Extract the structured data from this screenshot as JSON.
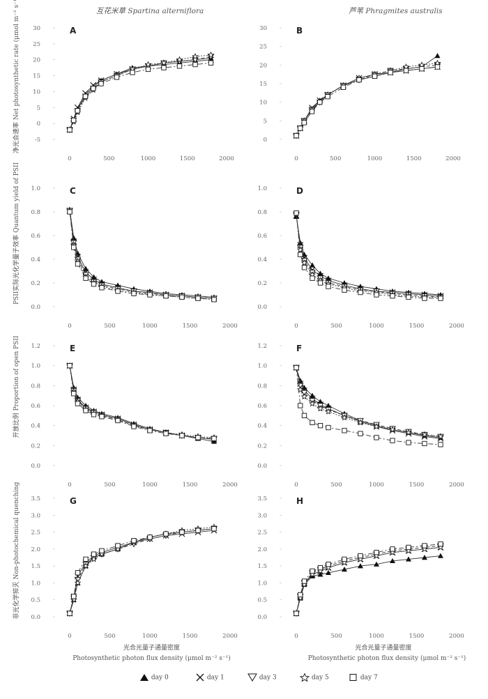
{
  "headers": {
    "left": "互花米草 Spartina alterniflora",
    "right": "芦苇 Phragmites australis"
  },
  "ylabels": {
    "row1": "净光合速率 Net photosynthetic rate (μmol m⁻² s⁻¹)",
    "row2": "PSII实际光化学量子效率 Quantum yield of PSII",
    "row3": "开放比例 Proportion of open PSII",
    "row4": "非光化学猝灭 Non-photochemical quenching"
  },
  "xlabels": {
    "left_cn": "光合光量子通量密度",
    "left_en": "Photosynthetic photon flux density (μmol m⁻² s⁻¹)",
    "right_cn": "光合光量子通量密度",
    "right_en": "Photosynthetic photon flux density (μmol m⁻² s⁻¹)"
  },
  "legend": [
    {
      "name": "day 0",
      "marker": "triangle-filled"
    },
    {
      "name": "day 1",
      "marker": "cross"
    },
    {
      "name": "day 3",
      "marker": "triangle-down-open"
    },
    {
      "name": "day 5",
      "marker": "star-open"
    },
    {
      "name": "day 7",
      "marker": "square-open"
    }
  ],
  "chart_data": [
    {
      "panel": "A",
      "type": "line",
      "x": [
        0,
        50,
        100,
        200,
        300,
        400,
        600,
        800,
        1000,
        1200,
        1400,
        1600,
        1800
      ],
      "xlim": [
        0,
        2000
      ],
      "xticks": [
        0,
        500,
        1000,
        1500,
        2000
      ],
      "ylim": [
        -5,
        30
      ],
      "yticks": [
        -5,
        0,
        5,
        10,
        15,
        20,
        25,
        30
      ],
      "series": [
        {
          "name": "day 0",
          "values": [
            -2,
            1,
            4.5,
            9,
            11.5,
            13.5,
            15.5,
            17.5,
            18,
            19,
            19.5,
            20,
            20.5
          ]
        },
        {
          "name": "day 1",
          "values": [
            -2,
            1.5,
            5,
            9.5,
            12,
            13.5,
            15.5,
            17,
            18,
            18.5,
            19,
            19.5,
            20
          ]
        },
        {
          "name": "day 3",
          "values": [
            -2,
            1,
            4,
            8.5,
            11,
            13,
            15,
            17,
            18,
            19,
            19.5,
            20,
            21
          ]
        },
        {
          "name": "day 5",
          "values": [
            -2,
            0.5,
            3.5,
            8,
            10.5,
            13,
            15,
            17,
            18.5,
            19,
            20,
            21,
            21.5
          ]
        },
        {
          "name": "day 7",
          "values": [
            -2,
            1,
            4,
            8.5,
            11,
            12.5,
            14.5,
            16,
            17,
            17.5,
            18,
            18.5,
            19
          ]
        }
      ]
    },
    {
      "panel": "B",
      "type": "line",
      "x": [
        0,
        50,
        100,
        200,
        300,
        400,
        600,
        800,
        1000,
        1200,
        1400,
        1600,
        1800
      ],
      "xlim": [
        0,
        2000
      ],
      "xticks": [
        0,
        500,
        1000,
        1500,
        2000
      ],
      "ylim": [
        0,
        30
      ],
      "yticks": [
        0,
        5,
        10,
        15,
        20,
        25,
        30
      ],
      "series": [
        {
          "name": "day 0",
          "values": [
            1,
            3,
            5,
            8,
            10.5,
            12,
            14.5,
            16,
            17,
            18,
            19,
            19.5,
            22.5
          ]
        },
        {
          "name": "day 1",
          "values": [
            1,
            3,
            5,
            8.5,
            10.5,
            12,
            14.5,
            16.5,
            17.5,
            18,
            18.5,
            19,
            19.5
          ]
        },
        {
          "name": "day 3",
          "values": [
            1,
            3,
            5,
            8,
            10,
            12,
            14.5,
            16,
            17.5,
            18.5,
            19,
            19.5,
            20
          ]
        },
        {
          "name": "day 5",
          "values": [
            1,
            3,
            5,
            8,
            10,
            12,
            14.5,
            16.5,
            17.5,
            18.5,
            19.5,
            20,
            20.5
          ]
        },
        {
          "name": "day 7",
          "values": [
            1,
            3,
            4.5,
            7.5,
            10,
            11.5,
            14,
            16,
            17,
            18,
            18.5,
            19,
            19.5
          ]
        }
      ]
    },
    {
      "panel": "C",
      "type": "line",
      "x": [
        0,
        50,
        100,
        200,
        300,
        400,
        600,
        800,
        1000,
        1200,
        1400,
        1600,
        1800
      ],
      "xlim": [
        0,
        2000
      ],
      "xticks": [
        0,
        500,
        1000,
        1500,
        2000
      ],
      "ylim": [
        0,
        1.0
      ],
      "yticks": [
        0.0,
        0.2,
        0.4,
        0.6,
        0.8,
        1.0
      ],
      "series": [
        {
          "name": "day 0",
          "values": [
            0.82,
            0.58,
            0.45,
            0.32,
            0.25,
            0.21,
            0.18,
            0.15,
            0.13,
            0.11,
            0.1,
            0.09,
            0.08
          ]
        },
        {
          "name": "day 1",
          "values": [
            0.81,
            0.55,
            0.42,
            0.29,
            0.23,
            0.19,
            0.16,
            0.13,
            0.12,
            0.1,
            0.09,
            0.08,
            0.07
          ]
        },
        {
          "name": "day 3",
          "values": [
            0.81,
            0.54,
            0.4,
            0.27,
            0.21,
            0.18,
            0.15,
            0.13,
            0.11,
            0.1,
            0.09,
            0.08,
            0.07
          ]
        },
        {
          "name": "day 5",
          "values": [
            0.81,
            0.52,
            0.38,
            0.25,
            0.2,
            0.17,
            0.14,
            0.12,
            0.1,
            0.09,
            0.08,
            0.07,
            0.06
          ]
        },
        {
          "name": "day 7",
          "values": [
            0.8,
            0.5,
            0.36,
            0.24,
            0.19,
            0.16,
            0.13,
            0.11,
            0.1,
            0.09,
            0.08,
            0.07,
            0.06
          ]
        }
      ]
    },
    {
      "panel": "D",
      "type": "line",
      "x": [
        0,
        50,
        100,
        200,
        300,
        400,
        600,
        800,
        1000,
        1200,
        1400,
        1600,
        1800
      ],
      "xlim": [
        0,
        2000
      ],
      "xticks": [
        0,
        500,
        1000,
        1500,
        2000
      ],
      "ylim": [
        0,
        1.0
      ],
      "yticks": [
        0.0,
        0.2,
        0.4,
        0.6,
        0.8,
        1.0
      ],
      "series": [
        {
          "name": "day 0",
          "values": [
            0.76,
            0.54,
            0.44,
            0.35,
            0.28,
            0.24,
            0.2,
            0.17,
            0.15,
            0.13,
            0.12,
            0.11,
            0.1
          ]
        },
        {
          "name": "day 1",
          "values": [
            0.77,
            0.52,
            0.41,
            0.31,
            0.26,
            0.22,
            0.18,
            0.15,
            0.13,
            0.12,
            0.11,
            0.1,
            0.09
          ]
        },
        {
          "name": "day 3",
          "values": [
            0.78,
            0.5,
            0.39,
            0.29,
            0.24,
            0.2,
            0.17,
            0.14,
            0.13,
            0.11,
            0.1,
            0.09,
            0.08
          ]
        },
        {
          "name": "day 5",
          "values": [
            0.78,
            0.48,
            0.37,
            0.27,
            0.22,
            0.19,
            0.16,
            0.13,
            0.12,
            0.1,
            0.09,
            0.08,
            0.08
          ]
        },
        {
          "name": "day 7",
          "values": [
            0.79,
            0.44,
            0.33,
            0.24,
            0.2,
            0.17,
            0.14,
            0.12,
            0.1,
            0.09,
            0.08,
            0.07,
            0.07
          ]
        }
      ]
    },
    {
      "panel": "E",
      "type": "line",
      "x": [
        0,
        50,
        100,
        200,
        300,
        400,
        600,
        800,
        1000,
        1200,
        1400,
        1600,
        1800
      ],
      "xlim": [
        0,
        2000
      ],
      "xticks": [
        0,
        500,
        1000,
        1500,
        2000
      ],
      "ylim": [
        0,
        1.2
      ],
      "yticks": [
        0.0,
        0.2,
        0.4,
        0.6,
        0.8,
        1.0,
        1.2
      ],
      "series": [
        {
          "name": "day 0",
          "values": [
            1.0,
            0.78,
            0.68,
            0.6,
            0.55,
            0.52,
            0.48,
            0.42,
            0.37,
            0.33,
            0.3,
            0.27,
            0.24
          ]
        },
        {
          "name": "day 1",
          "values": [
            1.0,
            0.76,
            0.66,
            0.58,
            0.54,
            0.51,
            0.47,
            0.41,
            0.36,
            0.33,
            0.3,
            0.28,
            0.26
          ]
        },
        {
          "name": "day 3",
          "values": [
            1.0,
            0.75,
            0.65,
            0.57,
            0.53,
            0.5,
            0.46,
            0.4,
            0.36,
            0.33,
            0.3,
            0.28,
            0.27
          ]
        },
        {
          "name": "day 5",
          "values": [
            1.0,
            0.74,
            0.64,
            0.56,
            0.52,
            0.5,
            0.46,
            0.4,
            0.36,
            0.33,
            0.31,
            0.29,
            0.28
          ]
        },
        {
          "name": "day 7",
          "values": [
            1.0,
            0.72,
            0.62,
            0.55,
            0.51,
            0.49,
            0.45,
            0.39,
            0.35,
            0.32,
            0.3,
            0.28,
            0.27
          ]
        }
      ]
    },
    {
      "panel": "F",
      "type": "line",
      "x": [
        0,
        50,
        100,
        200,
        300,
        400,
        600,
        800,
        1000,
        1200,
        1400,
        1600,
        1800
      ],
      "xlim": [
        0,
        2000
      ],
      "xticks": [
        0,
        500,
        1000,
        1500,
        2000
      ],
      "ylim": [
        0,
        1.2
      ],
      "yticks": [
        0.0,
        0.2,
        0.4,
        0.6,
        0.8,
        1.0,
        1.2
      ],
      "series": [
        {
          "name": "day 0",
          "values": [
            0.98,
            0.85,
            0.78,
            0.7,
            0.64,
            0.6,
            0.52,
            0.45,
            0.4,
            0.36,
            0.33,
            0.3,
            0.28
          ]
        },
        {
          "name": "day 1",
          "values": [
            0.98,
            0.82,
            0.75,
            0.67,
            0.61,
            0.57,
            0.5,
            0.44,
            0.39,
            0.35,
            0.32,
            0.29,
            0.27
          ]
        },
        {
          "name": "day 3",
          "values": [
            0.98,
            0.8,
            0.73,
            0.65,
            0.6,
            0.56,
            0.5,
            0.45,
            0.41,
            0.37,
            0.34,
            0.31,
            0.29
          ]
        },
        {
          "name": "day 5",
          "values": [
            0.98,
            0.76,
            0.69,
            0.62,
            0.57,
            0.54,
            0.48,
            0.43,
            0.39,
            0.36,
            0.33,
            0.31,
            0.29
          ]
        },
        {
          "name": "day 7",
          "values": [
            0.98,
            0.6,
            0.5,
            0.43,
            0.4,
            0.38,
            0.35,
            0.32,
            0.28,
            0.25,
            0.23,
            0.22,
            0.21
          ]
        }
      ]
    },
    {
      "panel": "G",
      "type": "line",
      "x": [
        0,
        50,
        100,
        200,
        300,
        400,
        600,
        800,
        1000,
        1200,
        1400,
        1600,
        1800
      ],
      "xlim": [
        0,
        2000
      ],
      "xticks": [
        0,
        500,
        1000,
        1500,
        2000
      ],
      "ylim": [
        0,
        3.5
      ],
      "yticks": [
        0.0,
        0.5,
        1.0,
        1.5,
        2.0,
        2.5,
        3.0,
        3.5
      ],
      "series": [
        {
          "name": "day 0",
          "values": [
            0.1,
            0.5,
            1.0,
            1.5,
            1.75,
            1.85,
            2.0,
            2.2,
            2.35,
            2.45,
            2.5,
            2.55,
            2.6
          ]
        },
        {
          "name": "day 1",
          "values": [
            0.1,
            0.6,
            1.2,
            1.6,
            1.8,
            1.9,
            2.05,
            2.2,
            2.3,
            2.4,
            2.45,
            2.5,
            2.55
          ]
        },
        {
          "name": "day 3",
          "values": [
            0.1,
            0.55,
            1.1,
            1.55,
            1.75,
            1.85,
            2.0,
            2.15,
            2.3,
            2.4,
            2.5,
            2.55,
            2.6
          ]
        },
        {
          "name": "day 5",
          "values": [
            0.1,
            0.5,
            1.0,
            1.5,
            1.7,
            1.85,
            2.0,
            2.2,
            2.35,
            2.45,
            2.55,
            2.6,
            2.65
          ]
        },
        {
          "name": "day 7",
          "values": [
            0.1,
            0.6,
            1.3,
            1.7,
            1.85,
            1.95,
            2.1,
            2.25,
            2.35,
            2.45,
            2.5,
            2.55,
            2.6
          ]
        }
      ]
    },
    {
      "panel": "H",
      "type": "line",
      "x": [
        0,
        50,
        100,
        200,
        300,
        400,
        600,
        800,
        1000,
        1200,
        1400,
        1600,
        1800
      ],
      "xlim": [
        0,
        2000
      ],
      "xticks": [
        0,
        500,
        1000,
        1500,
        2000
      ],
      "ylim": [
        0,
        3.5
      ],
      "yticks": [
        0.0,
        0.5,
        1.0,
        1.5,
        2.0,
        2.5,
        3.0,
        3.5
      ],
      "series": [
        {
          "name": "day 0",
          "values": [
            0.1,
            0.55,
            0.95,
            1.2,
            1.25,
            1.3,
            1.4,
            1.5,
            1.55,
            1.65,
            1.7,
            1.75,
            1.8
          ]
        },
        {
          "name": "day 1",
          "values": [
            0.1,
            0.6,
            1.0,
            1.25,
            1.35,
            1.45,
            1.6,
            1.7,
            1.8,
            1.9,
            1.95,
            2.0,
            2.05
          ]
        },
        {
          "name": "day 3",
          "values": [
            0.1,
            0.6,
            1.0,
            1.3,
            1.4,
            1.5,
            1.65,
            1.75,
            1.85,
            1.95,
            2.0,
            2.05,
            2.1
          ]
        },
        {
          "name": "day 5",
          "values": [
            0.1,
            0.55,
            0.95,
            1.25,
            1.35,
            1.45,
            1.6,
            1.7,
            1.8,
            1.9,
            1.95,
            2.0,
            2.05
          ]
        },
        {
          "name": "day 7",
          "values": [
            0.1,
            0.65,
            1.05,
            1.35,
            1.45,
            1.55,
            1.7,
            1.8,
            1.9,
            2.0,
            2.05,
            2.1,
            2.15
          ]
        }
      ]
    }
  ]
}
